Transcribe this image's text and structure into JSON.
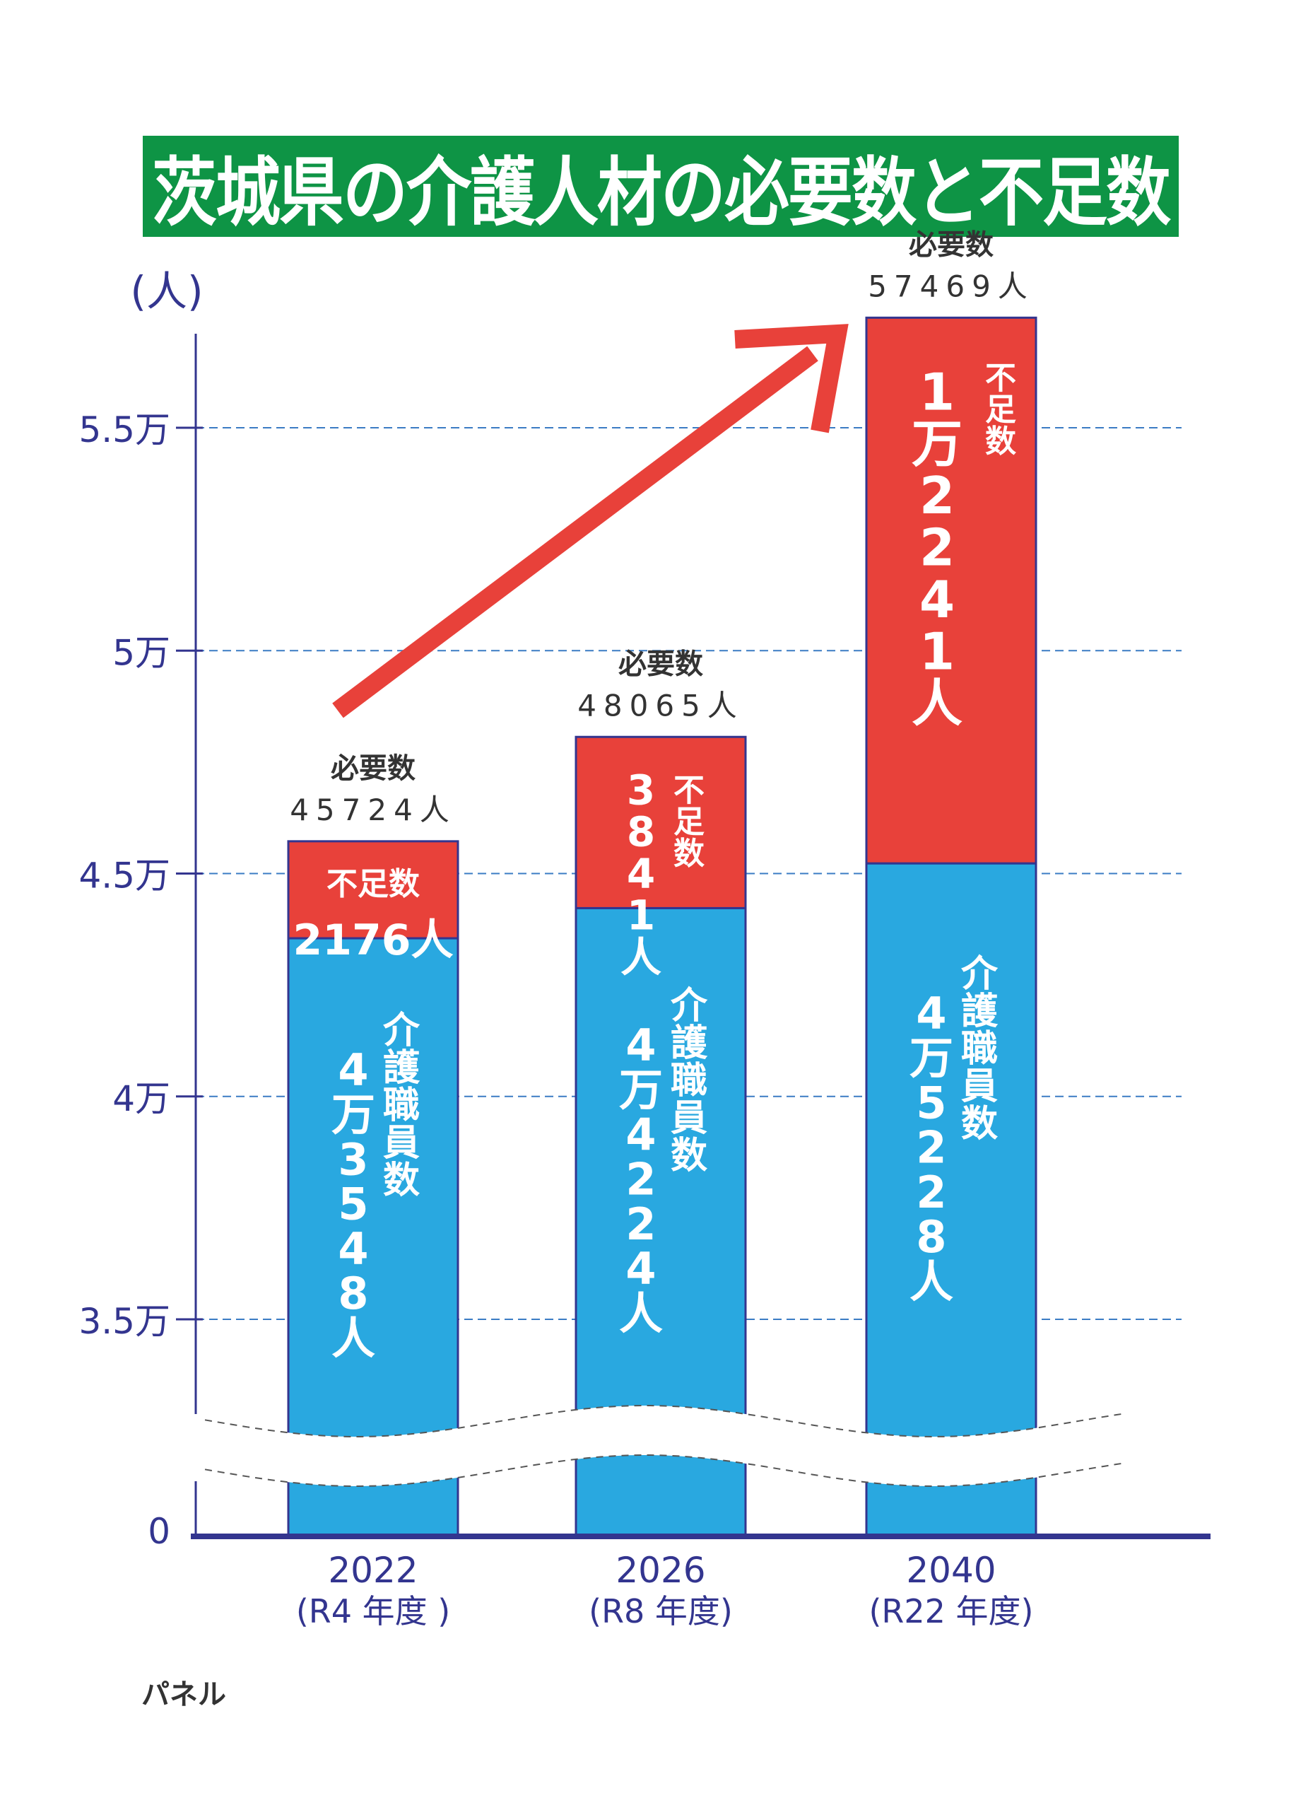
{
  "title": "茨城県の介護人材の必要数と不足数",
  "footer_label": "パネル",
  "colors": {
    "title_bg": "#0E9445",
    "staff": "#29A8E0",
    "shortage": "#E8413A",
    "axis": "#33358F",
    "grid": "#3B7CC4",
    "arrow": "#E8413A"
  },
  "chart_data": {
    "type": "bar",
    "stacked": true,
    "title": "茨城県の介護人材の必要数と不足数",
    "ylabel": "(人)",
    "xlabel": "",
    "ylim": [
      30000,
      58000
    ],
    "axis_break": true,
    "grid": true,
    "yticks": [
      {
        "value": 0,
        "label": "0"
      },
      {
        "value": 35000,
        "label": "3.5万"
      },
      {
        "value": 40000,
        "label": "4万"
      },
      {
        "value": 45000,
        "label": "4.5万"
      },
      {
        "value": 50000,
        "label": "5万"
      },
      {
        "value": 55000,
        "label": "5.5万"
      }
    ],
    "categories": [
      {
        "year": "2022",
        "fiscal": "(R4 年度 )"
      },
      {
        "year": "2026",
        "fiscal": "(R8 年度)"
      },
      {
        "year": "2040",
        "fiscal": "(R22 年度)"
      }
    ],
    "series": [
      {
        "name": "介護職員数",
        "values": [
          43548,
          44224,
          45228
        ],
        "labels": [
          "4万3548人",
          "4万4224人",
          "4万5228人"
        ]
      },
      {
        "name": "不足数",
        "values": [
          2176,
          3841,
          12241
        ],
        "labels": [
          "2176人",
          "3841人",
          "1万2241人"
        ]
      }
    ],
    "totals": {
      "name": "必要数",
      "values": [
        45724,
        48065,
        57469
      ],
      "labels": [
        "45724人",
        "48065人",
        "57469人"
      ]
    },
    "annotations": [
      "upward trend arrow from 2022 to 2040"
    ]
  }
}
